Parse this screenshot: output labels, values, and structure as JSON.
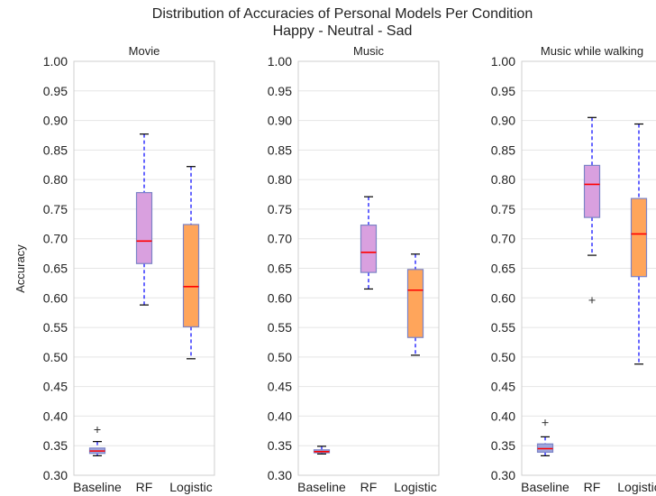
{
  "figure": {
    "title_line1": "Distribution of Accuracies of Personal Models Per Condition",
    "title_line2": "Happy - Neutral - Sad",
    "ylabel": "Accuracy"
  },
  "style": {
    "baseline_box": "#9da6de",
    "rf_box": "#d9a0df",
    "logistic_box": "#ffa55b",
    "box_edge": "#7b83c6",
    "median": "#ff0000",
    "whisker": "#0000ff",
    "grid": "#e5e5e5",
    "spine": "#cfcfcf"
  },
  "chart_data": [
    {
      "type": "box",
      "title": "Movie",
      "categories": [
        "Baseline",
        "RF",
        "Logistic"
      ],
      "ylim": [
        0.3,
        1.0
      ],
      "yticks": [
        "1.00",
        "0.95",
        "0.90",
        "0.85",
        "0.80",
        "0.75",
        "0.70",
        "0.65",
        "0.60",
        "0.55",
        "0.50",
        "0.45",
        "0.40",
        "0.35",
        "0.30"
      ],
      "grid": "horizontal",
      "boxes": [
        {
          "name": "Baseline",
          "whislo": 0.333,
          "q1": 0.337,
          "med": 0.341,
          "q3": 0.346,
          "whishi": 0.357,
          "fliers": [
            0.377
          ]
        },
        {
          "name": "RF",
          "whislo": 0.588,
          "q1": 0.658,
          "med": 0.696,
          "q3": 0.778,
          "whishi": 0.877,
          "fliers": []
        },
        {
          "name": "Logistic",
          "whislo": 0.497,
          "q1": 0.551,
          "med": 0.619,
          "q3": 0.724,
          "whishi": 0.822,
          "fliers": []
        }
      ]
    },
    {
      "type": "box",
      "title": "Music",
      "categories": [
        "Baseline",
        "RF",
        "Logistic"
      ],
      "ylim": [
        0.3,
        1.0
      ],
      "yticks": [
        "1.00",
        "0.95",
        "0.90",
        "0.85",
        "0.80",
        "0.75",
        "0.70",
        "0.65",
        "0.60",
        "0.55",
        "0.50",
        "0.45",
        "0.40",
        "0.35",
        "0.30"
      ],
      "grid": "horizontal",
      "boxes": [
        {
          "name": "Baseline",
          "whislo": 0.336,
          "q1": 0.338,
          "med": 0.34,
          "q3": 0.343,
          "whishi": 0.349,
          "fliers": []
        },
        {
          "name": "RF",
          "whislo": 0.615,
          "q1": 0.643,
          "med": 0.677,
          "q3": 0.723,
          "whishi": 0.771,
          "fliers": []
        },
        {
          "name": "Logistic",
          "whislo": 0.503,
          "q1": 0.533,
          "med": 0.613,
          "q3": 0.648,
          "whishi": 0.674,
          "fliers": []
        }
      ]
    },
    {
      "type": "box",
      "title": "Music while walking",
      "categories": [
        "Baseline",
        "RF",
        "Logistic"
      ],
      "ylim": [
        0.3,
        1.0
      ],
      "yticks": [
        "1.00",
        "0.95",
        "0.90",
        "0.85",
        "0.80",
        "0.75",
        "0.70",
        "0.65",
        "0.60",
        "0.55",
        "0.50",
        "0.45",
        "0.40",
        "0.35",
        "0.30"
      ],
      "grid": "horizontal",
      "boxes": [
        {
          "name": "Baseline",
          "whislo": 0.333,
          "q1": 0.339,
          "med": 0.345,
          "q3": 0.353,
          "whishi": 0.365,
          "fliers": [
            0.389
          ]
        },
        {
          "name": "RF",
          "whislo": 0.672,
          "q1": 0.736,
          "med": 0.792,
          "q3": 0.824,
          "whishi": 0.905,
          "fliers": [
            0.596
          ]
        },
        {
          "name": "Logistic",
          "whislo": 0.488,
          "q1": 0.636,
          "med": 0.708,
          "q3": 0.768,
          "whishi": 0.894,
          "fliers": []
        }
      ]
    }
  ]
}
